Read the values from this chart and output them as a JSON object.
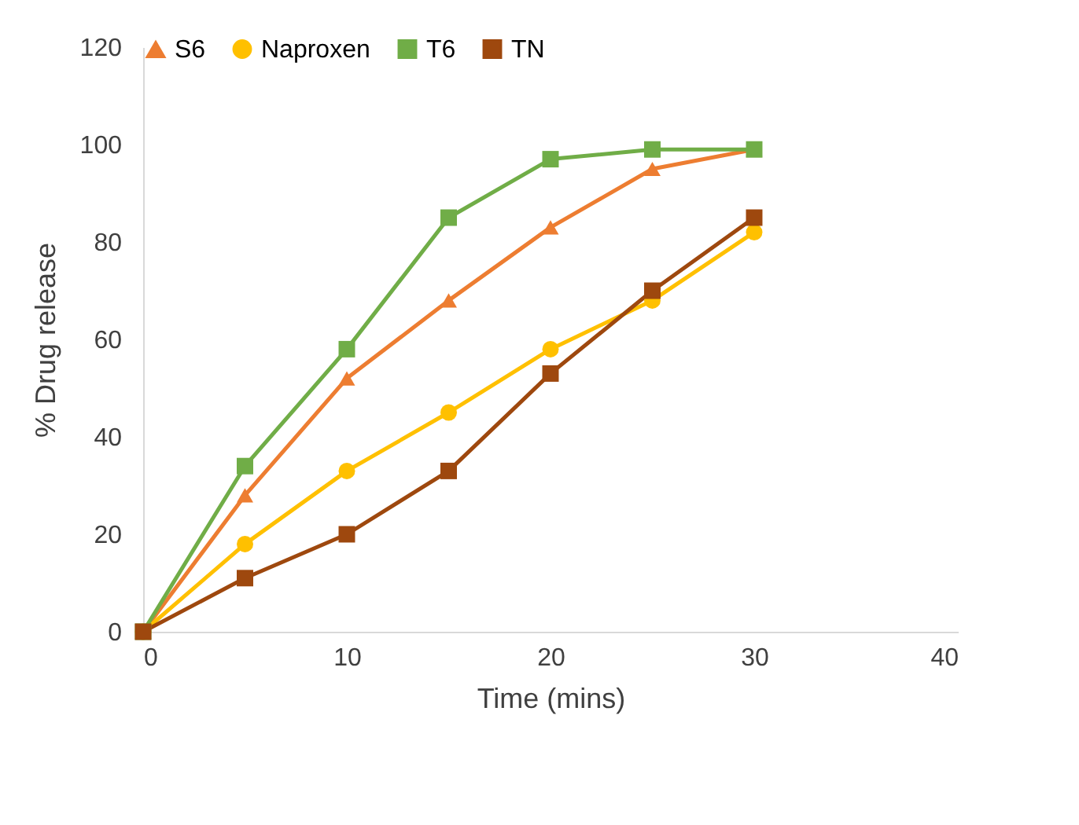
{
  "chart_data": {
    "type": "line",
    "xlabel": "Time (mins)",
    "ylabel": "% Drug release",
    "x": [
      0,
      5,
      10,
      15,
      20,
      25,
      30
    ],
    "series": [
      {
        "name": "S6",
        "color": "#ed7d31",
        "marker": "triangle",
        "values": [
          0,
          28,
          52,
          68,
          83,
          95,
          99
        ]
      },
      {
        "name": "Naproxen",
        "color": "#ffc000",
        "marker": "circle",
        "values": [
          0,
          18,
          33,
          45,
          58,
          68,
          82
        ]
      },
      {
        "name": "T6",
        "color": "#70ad47",
        "marker": "square",
        "values": [
          0,
          34,
          58,
          85,
          97,
          99,
          99
        ]
      },
      {
        "name": "TN",
        "color": "#9e480e",
        "marker": "square",
        "values": [
          0,
          11,
          20,
          33,
          53,
          70,
          85
        ]
      }
    ],
    "xlim": [
      0,
      40
    ],
    "xticks": [
      0,
      10,
      20,
      30,
      40
    ],
    "ylim": [
      0,
      120
    ],
    "yticks": [
      0,
      20,
      40,
      60,
      80,
      100,
      120
    ],
    "grid": false,
    "legend": "top",
    "line_style": "solid"
  }
}
